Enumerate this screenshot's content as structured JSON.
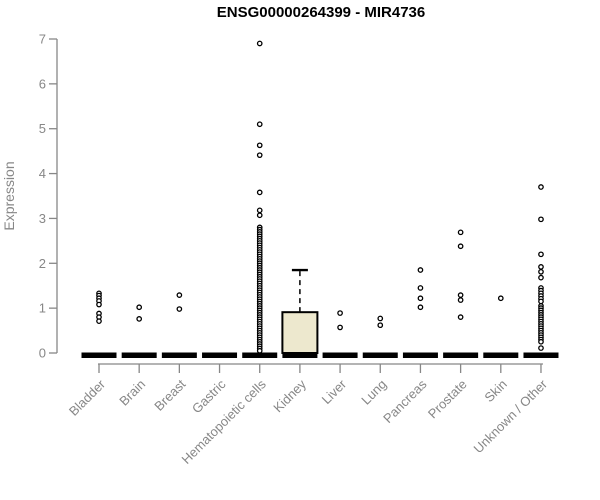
{
  "chart_data": {
    "type": "boxplot",
    "title": "ENSG00000264399 - MIR4736",
    "xlabel": "",
    "ylabel": "Expression",
    "ylim": [
      0,
      7
    ],
    "yticks": [
      0,
      1,
      2,
      3,
      4,
      5,
      6,
      7
    ],
    "grid": false,
    "legend": "none",
    "categories": [
      "Bladder",
      "Brain",
      "Breast",
      "Gastric",
      "Hematopoietic cells",
      "Kidney",
      "Liver",
      "Lung",
      "Pancreas",
      "Prostate",
      "Skin",
      "Unknown / Other"
    ],
    "series": [
      {
        "name": "Bladder",
        "q1": 0,
        "median": 0,
        "q3": 0,
        "whisker_low": 0,
        "whisker_high": 0,
        "outliers": [
          1.33,
          1.28,
          1.22,
          1.16,
          1.08,
          0.88,
          0.8,
          0.71
        ]
      },
      {
        "name": "Brain",
        "q1": 0,
        "median": 0,
        "q3": 0,
        "whisker_low": 0,
        "whisker_high": 0,
        "outliers": [
          1.02,
          0.76
        ]
      },
      {
        "name": "Breast",
        "q1": 0,
        "median": 0,
        "q3": 0,
        "whisker_low": 0,
        "whisker_high": 0,
        "outliers": [
          1.29,
          0.98
        ]
      },
      {
        "name": "Gastric",
        "q1": 0,
        "median": 0,
        "q3": 0,
        "whisker_low": 0,
        "whisker_high": 0,
        "outliers": []
      },
      {
        "name": "Hematopoietic cells",
        "q1": 0,
        "median": 0,
        "q3": 0,
        "whisker_low": 0,
        "whisker_high": 0,
        "outliers": [
          6.9,
          5.1,
          4.63,
          4.41,
          3.58,
          3.18,
          3.07,
          2.8,
          2.75,
          2.7,
          2.65,
          2.6,
          2.55,
          2.5,
          2.45,
          2.4,
          2.35,
          2.3,
          2.25,
          2.2,
          2.15,
          2.1,
          2.05,
          2.0,
          1.95,
          1.9,
          1.85,
          1.8,
          1.75,
          1.7,
          1.65,
          1.6,
          1.55,
          1.5,
          1.45,
          1.4,
          1.35,
          1.3,
          1.25,
          1.2,
          1.15,
          1.1,
          1.05,
          1.0,
          0.95,
          0.9,
          0.85,
          0.8,
          0.75,
          0.7,
          0.65,
          0.6,
          0.55,
          0.5,
          0.45,
          0.4,
          0.35,
          0.3,
          0.25,
          0.2,
          0.15,
          0.1,
          0.05
        ]
      },
      {
        "name": "Kidney",
        "q1": 0,
        "median": 0,
        "q3": 0.91,
        "whisker_low": 0,
        "whisker_high": 1.85,
        "outliers": []
      },
      {
        "name": "Liver",
        "q1": 0,
        "median": 0,
        "q3": 0,
        "whisker_low": 0,
        "whisker_high": 0,
        "outliers": [
          0.89,
          0.57
        ]
      },
      {
        "name": "Lung",
        "q1": 0,
        "median": 0,
        "q3": 0,
        "whisker_low": 0,
        "whisker_high": 0,
        "outliers": [
          0.77,
          0.62
        ]
      },
      {
        "name": "Pancreas",
        "q1": 0,
        "median": 0,
        "q3": 0,
        "whisker_low": 0,
        "whisker_high": 0,
        "outliers": [
          1.85,
          1.45,
          1.22,
          1.02
        ]
      },
      {
        "name": "Prostate",
        "q1": 0,
        "median": 0,
        "q3": 0,
        "whisker_low": 0,
        "whisker_high": 0,
        "outliers": [
          2.69,
          2.38,
          1.29,
          1.18,
          0.8
        ]
      },
      {
        "name": "Skin",
        "q1": 0,
        "median": 0,
        "q3": 0,
        "whisker_low": 0,
        "whisker_high": 0,
        "outliers": [
          1.22
        ]
      },
      {
        "name": "Unknown / Other",
        "q1": 0,
        "median": 0,
        "q3": 0,
        "whisker_low": 0,
        "whisker_high": 0,
        "outliers": [
          3.7,
          2.98,
          2.2,
          1.92,
          1.81,
          1.68,
          1.45,
          1.39,
          1.33,
          1.27,
          1.21,
          1.15,
          1.05,
          1.0,
          0.95,
          0.9,
          0.85,
          0.8,
          0.75,
          0.7,
          0.65,
          0.6,
          0.55,
          0.5,
          0.45,
          0.4,
          0.35,
          0.3,
          0.25,
          0.11
        ]
      }
    ]
  },
  "colors": {
    "box_fill": "#EDE8CE",
    "box_stroke": "#000000",
    "zero_bar": "#000000",
    "axis": "#878787",
    "axis_text": "#878787",
    "title_text": "#000000",
    "outlier_stroke": "#000000",
    "outlier_fill": "#FFFFFF"
  }
}
